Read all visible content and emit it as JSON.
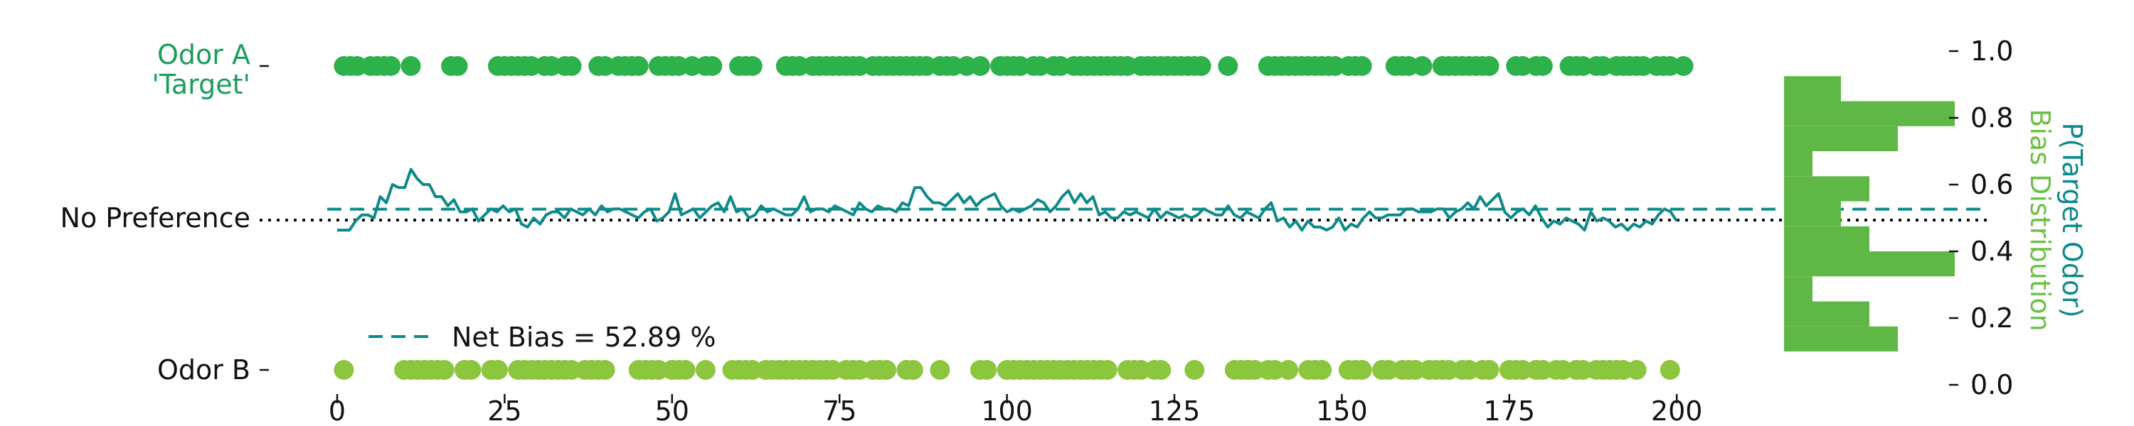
{
  "chart_data": {
    "type": "scatter",
    "x_ticks": [
      0,
      25,
      50,
      75,
      100,
      125,
      150,
      175,
      200
    ],
    "xlim": [
      -1,
      200
    ],
    "left_axis_labels": {
      "odor_a_line1": "Odor A",
      "odor_a_line2": "'Target'",
      "no_preference": "No Preference",
      "odor_b": "Odor B"
    },
    "right_axis": {
      "ticks": [
        "0.0",
        "0.2",
        "0.4",
        "0.6",
        "0.8",
        "1.0"
      ],
      "tick_values": [
        0.0,
        0.2,
        0.4,
        0.6,
        0.8,
        1.0
      ],
      "ylim": [
        0,
        1
      ],
      "label_line1": "P(Target Odor)",
      "label_line2": "Bias Distribution"
    },
    "legend": {
      "label": "Net Bias = 52.89 %",
      "placement": "lower-left"
    },
    "net_bias": 0.5289,
    "no_preference_level": 0.5,
    "odor_a_trials": [
      1,
      2,
      3,
      5,
      6,
      7,
      8,
      11,
      17,
      18,
      24,
      25,
      26,
      27,
      28,
      29,
      31,
      32,
      34,
      35,
      39,
      40,
      42,
      43,
      44,
      45,
      48,
      49,
      50,
      51,
      53,
      55,
      56,
      60,
      61,
      62,
      67,
      68,
      69,
      71,
      72,
      73,
      74,
      75,
      76,
      77,
      78,
      80,
      81,
      82,
      83,
      84,
      85,
      86,
      87,
      88,
      90,
      91,
      92,
      94,
      96,
      99,
      100,
      101,
      102,
      104,
      105,
      107,
      108,
      110,
      111,
      112,
      113,
      114,
      115,
      116,
      117,
      118,
      120,
      121,
      122,
      123,
      124,
      125,
      126,
      127,
      128,
      129,
      133,
      139,
      140,
      141,
      142,
      143,
      144,
      145,
      146,
      147,
      148,
      149,
      151,
      152,
      153,
      158,
      159,
      160,
      162,
      165,
      166,
      167,
      168,
      169,
      170,
      171,
      172,
      176,
      177,
      179,
      180,
      184,
      185,
      186,
      188,
      189,
      191,
      192,
      193,
      194,
      195,
      197,
      198,
      199,
      201
    ],
    "odor_b_trials": [
      1,
      10,
      11,
      12,
      13,
      14,
      15,
      16,
      19,
      20,
      23,
      24,
      27,
      28,
      29,
      30,
      31,
      32,
      33,
      34,
      35,
      37,
      38,
      39,
      40,
      45,
      46,
      47,
      48,
      50,
      51,
      52,
      55,
      59,
      60,
      61,
      62,
      64,
      65,
      66,
      67,
      68,
      69,
      70,
      71,
      72,
      73,
      74,
      76,
      77,
      78,
      80,
      81,
      82,
      85,
      86,
      90,
      96,
      97,
      100,
      101,
      102,
      103,
      104,
      105,
      106,
      107,
      108,
      109,
      110,
      111,
      112,
      113,
      114,
      115,
      118,
      119,
      120,
      122,
      123,
      128,
      134,
      135,
      136,
      137,
      139,
      140,
      142,
      145,
      146,
      147,
      151,
      152,
      153,
      156,
      157,
      159,
      160,
      161,
      163,
      164,
      165,
      166,
      168,
      169,
      171,
      172,
      175,
      176,
      177,
      179,
      180,
      182,
      183,
      185,
      186,
      188,
      189,
      190,
      191,
      192,
      194,
      199
    ],
    "bias_series": [
      0.46,
      0.46,
      0.46,
      0.49,
      0.51,
      0.51,
      0.5,
      0.57,
      0.55,
      0.61,
      0.6,
      0.6,
      0.66,
      0.63,
      0.61,
      0.61,
      0.57,
      0.57,
      0.54,
      0.56,
      0.52,
      0.52,
      0.53,
      0.49,
      0.51,
      0.53,
      0.52,
      0.54,
      0.52,
      0.53,
      0.48,
      0.47,
      0.5,
      0.48,
      0.51,
      0.52,
      0.52,
      0.5,
      0.53,
      0.52,
      0.51,
      0.53,
      0.51,
      0.54,
      0.52,
      0.53,
      0.53,
      0.52,
      0.51,
      0.5,
      0.52,
      0.53,
      0.49,
      0.5,
      0.52,
      0.58,
      0.51,
      0.52,
      0.53,
      0.5,
      0.52,
      0.54,
      0.55,
      0.52,
      0.57,
      0.52,
      0.53,
      0.5,
      0.51,
      0.54,
      0.52,
      0.53,
      0.52,
      0.51,
      0.51,
      0.53,
      0.57,
      0.52,
      0.53,
      0.53,
      0.52,
      0.54,
      0.53,
      0.52,
      0.51,
      0.55,
      0.53,
      0.52,
      0.54,
      0.53,
      0.53,
      0.52,
      0.55,
      0.54,
      0.6,
      0.6,
      0.57,
      0.55,
      0.55,
      0.54,
      0.56,
      0.58,
      0.55,
      0.57,
      0.54,
      0.56,
      0.57,
      0.58,
      0.54,
      0.52,
      0.53,
      0.52,
      0.53,
      0.54,
      0.56,
      0.55,
      0.52,
      0.54,
      0.57,
      0.59,
      0.55,
      0.58,
      0.55,
      0.57,
      0.51,
      0.52,
      0.5,
      0.5,
      0.52,
      0.51,
      0.52,
      0.51,
      0.5,
      0.53,
      0.5,
      0.52,
      0.51,
      0.5,
      0.51,
      0.5,
      0.51,
      0.53,
      0.52,
      0.51,
      0.51,
      0.54,
      0.51,
      0.5,
      0.52,
      0.51,
      0.5,
      0.53,
      0.55,
      0.49,
      0.5,
      0.47,
      0.49,
      0.46,
      0.49,
      0.47,
      0.47,
      0.46,
      0.47,
      0.5,
      0.46,
      0.48,
      0.47,
      0.5,
      0.52,
      0.5,
      0.5,
      0.51,
      0.51,
      0.51,
      0.53,
      0.53,
      0.52,
      0.52,
      0.52,
      0.53,
      0.53,
      0.5,
      0.52,
      0.53,
      0.55,
      0.53,
      0.57,
      0.54,
      0.56,
      0.58,
      0.52,
      0.5,
      0.52,
      0.53,
      0.51,
      0.54,
      0.5,
      0.47,
      0.49,
      0.48,
      0.5,
      0.49,
      0.48,
      0.46,
      0.52,
      0.49,
      0.5,
      0.49,
      0.47,
      0.48,
      0.46,
      0.48,
      0.47,
      0.49,
      0.48,
      0.51,
      0.53,
      0.52,
      0.49
    ],
    "bias_distribution": {
      "bin_edges": [
        0.1,
        0.175,
        0.25,
        0.325,
        0.4,
        0.475,
        0.55,
        0.625,
        0.7,
        0.775,
        0.85,
        0.925
      ],
      "counts": [
        4,
        3,
        1,
        6,
        3,
        2,
        3,
        1,
        4,
        6,
        2
      ]
    },
    "colors": {
      "odor_a": "#2db14b",
      "odor_b": "#8cc63f",
      "bias_line": "#0e8a8a",
      "net_bias_line": "#0e8a8a",
      "no_preference_line": "#111111",
      "histogram": "#5fb846",
      "odor_a_label": "#1a9e5a",
      "axis_text": "#111111",
      "right_label_top": "#0e8a8a",
      "right_label_bottom": "#6cc046"
    }
  }
}
